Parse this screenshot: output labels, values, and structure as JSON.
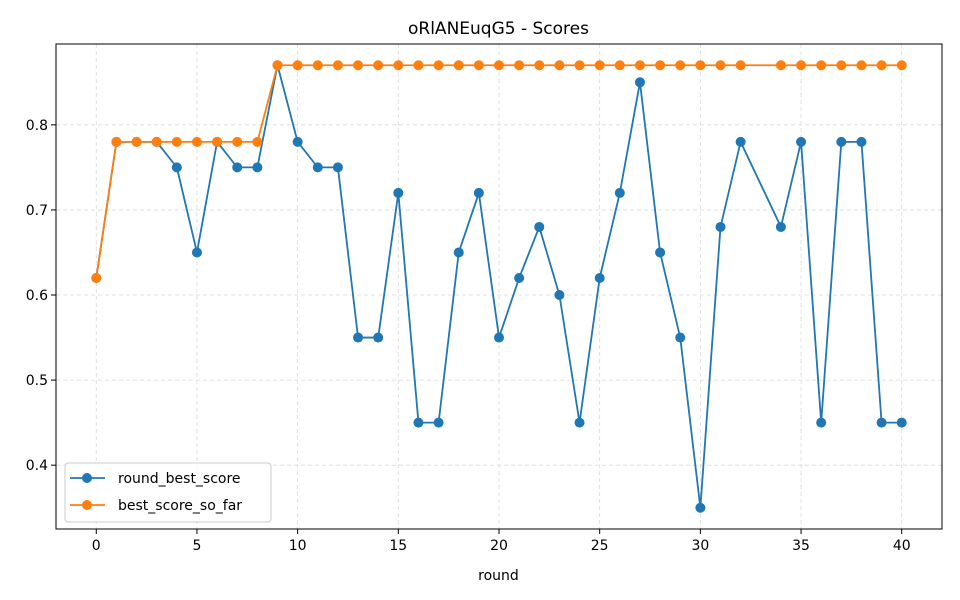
{
  "chart_data": {
    "type": "line",
    "title": "oRlANEuqG5 - Scores",
    "xlabel": "round",
    "ylabel": "",
    "xlim": [
      -2,
      42
    ],
    "ylim": [
      0.325,
      0.895
    ],
    "xticks": [
      0,
      5,
      10,
      15,
      20,
      25,
      30,
      35,
      40
    ],
    "yticks": [
      0.4,
      0.5,
      0.6,
      0.7,
      0.8
    ],
    "xtick_labels": [
      "0",
      "5",
      "10",
      "15",
      "20",
      "25",
      "30",
      "35",
      "40"
    ],
    "ytick_labels": [
      "0.4",
      "0.5",
      "0.6",
      "0.7",
      "0.8"
    ],
    "grid": true,
    "legend_position": "bottom-left",
    "series": [
      {
        "name": "round_best_score",
        "color": "#1f77b4",
        "marker": "circle",
        "x": [
          0,
          1,
          2,
          3,
          4,
          5,
          6,
          7,
          8,
          9,
          10,
          11,
          12,
          13,
          14,
          15,
          16,
          17,
          18,
          19,
          20,
          21,
          22,
          23,
          24,
          25,
          26,
          27,
          28,
          29,
          30,
          31,
          32,
          34,
          35,
          36,
          37,
          38,
          39,
          40
        ],
        "y": [
          0.62,
          0.78,
          0.78,
          0.78,
          0.75,
          0.65,
          0.78,
          0.75,
          0.75,
          0.87,
          0.78,
          0.75,
          0.75,
          0.55,
          0.55,
          0.72,
          0.45,
          0.45,
          0.65,
          0.72,
          0.55,
          0.62,
          0.68,
          0.6,
          0.45,
          0.62,
          0.72,
          0.85,
          0.65,
          0.55,
          0.35,
          0.68,
          0.78,
          0.68,
          0.78,
          0.45,
          0.78,
          0.78,
          0.45,
          0.45
        ]
      },
      {
        "name": "best_score_so_far",
        "color": "#ff7f0e",
        "marker": "circle",
        "x": [
          0,
          1,
          2,
          3,
          4,
          5,
          6,
          7,
          8,
          9,
          10,
          11,
          12,
          13,
          14,
          15,
          16,
          17,
          18,
          19,
          20,
          21,
          22,
          23,
          24,
          25,
          26,
          27,
          28,
          29,
          30,
          31,
          32,
          34,
          35,
          36,
          37,
          38,
          39,
          40
        ],
        "y": [
          0.62,
          0.78,
          0.78,
          0.78,
          0.78,
          0.78,
          0.78,
          0.78,
          0.78,
          0.87,
          0.87,
          0.87,
          0.87,
          0.87,
          0.87,
          0.87,
          0.87,
          0.87,
          0.87,
          0.87,
          0.87,
          0.87,
          0.87,
          0.87,
          0.87,
          0.87,
          0.87,
          0.87,
          0.87,
          0.87,
          0.87,
          0.87,
          0.87,
          0.87,
          0.87,
          0.87,
          0.87,
          0.87,
          0.87,
          0.87
        ]
      }
    ]
  }
}
